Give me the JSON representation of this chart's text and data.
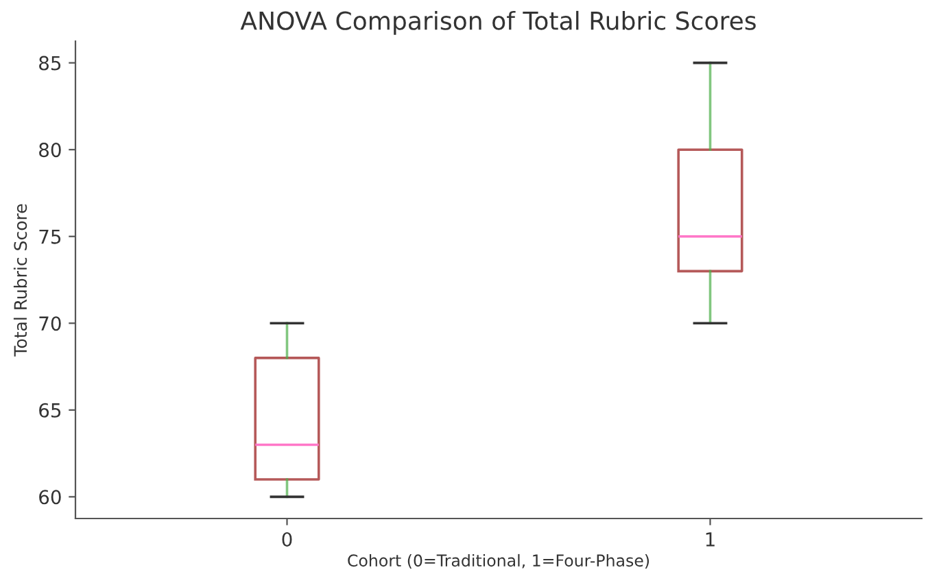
{
  "chart_data": {
    "type": "box",
    "title": "ANOVA Comparison of Total Rubric Scores",
    "xlabel": "Cohort (0=Traditional, 1=Four-Phase)",
    "ylabel": "Total Rubric Score",
    "categories": [
      "0",
      "1"
    ],
    "series": [
      {
        "color": "#a83c3c",
        "boxes": [
          {
            "low": 60,
            "q1": 61,
            "median": 63,
            "q3": 68,
            "high": 70
          },
          {
            "low": 70,
            "q1": 73,
            "median": 75,
            "q3": 80,
            "high": 85
          }
        ]
      }
    ],
    "ylim": [
      58.75,
      86.25
    ],
    "yticks": [
      60,
      65,
      70,
      75,
      80,
      85
    ],
    "grid": false
  }
}
